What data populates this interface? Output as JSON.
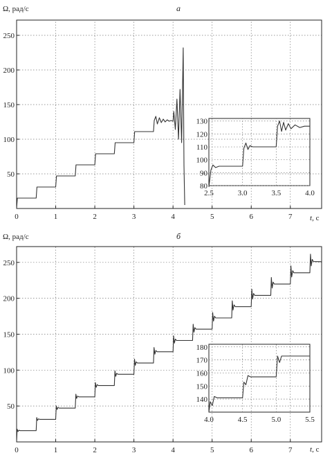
{
  "chart_data": [
    {
      "type": "line",
      "title": "а",
      "ylabel": "Ω, рад/с",
      "xlabel_italic": "t",
      "xlabel_unit": ", с",
      "xlim": [
        0,
        7.8
      ],
      "ylim": [
        0,
        272
      ],
      "xticks": [
        0,
        1,
        2,
        3,
        4,
        5,
        6,
        7
      ],
      "yticks": [
        50,
        100,
        150,
        200,
        250
      ],
      "grid": true,
      "series": [
        {
          "x": [
            0,
            0.02,
            0.5,
            0.52,
            1.0,
            1.02,
            1.5,
            1.52,
            2.0,
            2.02,
            2.5,
            2.52,
            3.0,
            3.02,
            3.5,
            3.52,
            3.56,
            3.6,
            3.65,
            3.7,
            3.75,
            3.8,
            3.85,
            3.9,
            3.95,
            4.0,
            4.02,
            4.06,
            4.1,
            4.14,
            4.18,
            4.22,
            4.26,
            4.28,
            4.3
          ],
          "values": [
            0,
            15,
            15,
            31,
            31,
            47,
            47,
            63,
            63,
            79,
            79,
            95,
            95,
            111,
            111,
            127,
            133,
            122,
            131,
            124,
            129,
            125,
            128,
            126,
            127,
            126,
            140,
            114,
            158,
            100,
            172,
            95,
            232,
            62,
            5
          ]
        }
      ],
      "inset": {
        "xlim": [
          2.5,
          4.0
        ],
        "ylim": [
          80,
          132
        ],
        "xticks": [
          2.5,
          3.0,
          3.5,
          4.0
        ],
        "yticks": [
          80,
          90,
          100,
          110,
          120,
          130
        ],
        "x": [
          2.5,
          2.53,
          2.56,
          2.6,
          2.65,
          2.7,
          2.8,
          3.0,
          3.02,
          3.05,
          3.08,
          3.11,
          3.15,
          3.2,
          3.3,
          3.5,
          3.52,
          3.55,
          3.58,
          3.61,
          3.64,
          3.68,
          3.72,
          3.78,
          3.85,
          3.92,
          4.0
        ],
        "values": [
          79,
          92,
          96,
          94,
          95,
          95,
          95,
          95,
          109,
          113,
          108,
          111,
          110,
          110,
          110,
          110,
          126,
          130,
          122,
          129,
          123,
          128,
          124,
          127,
          125,
          126,
          126
        ]
      }
    },
    {
      "type": "line",
      "title": "б",
      "ylabel": "Ω, рад/с",
      "xlabel_italic": "t",
      "xlabel_unit": ", с",
      "xlim": [
        0,
        7.8
      ],
      "ylim": [
        0,
        272
      ],
      "xticks": [
        0,
        1,
        2,
        3,
        4,
        5,
        6,
        7
      ],
      "yticks": [
        50,
        100,
        150,
        200,
        250
      ],
      "grid": true,
      "series": [
        {
          "steps_start": 0.0,
          "steps_dt": 0.5,
          "steps_count": 16,
          "steps_dy": 15.7,
          "x_end": 7.8,
          "final_value": 251
        }
      ],
      "inset": {
        "xlim": [
          4.0,
          5.5
        ],
        "ylim": [
          130,
          182
        ],
        "xticks": [
          4.0,
          4.5,
          5.0,
          5.5
        ],
        "yticks": [
          140,
          150,
          160,
          170,
          180
        ],
        "x": [
          4.0,
          4.02,
          4.05,
          4.08,
          4.12,
          4.2,
          4.5,
          4.52,
          4.55,
          4.58,
          4.62,
          4.7,
          5.0,
          5.02,
          5.05,
          5.08,
          5.12,
          5.2,
          5.5
        ],
        "values": [
          130,
          138,
          135,
          142,
          141,
          141,
          141,
          153,
          151,
          158,
          157,
          157,
          157,
          173,
          168,
          173,
          173,
          173,
          173
        ]
      }
    }
  ]
}
